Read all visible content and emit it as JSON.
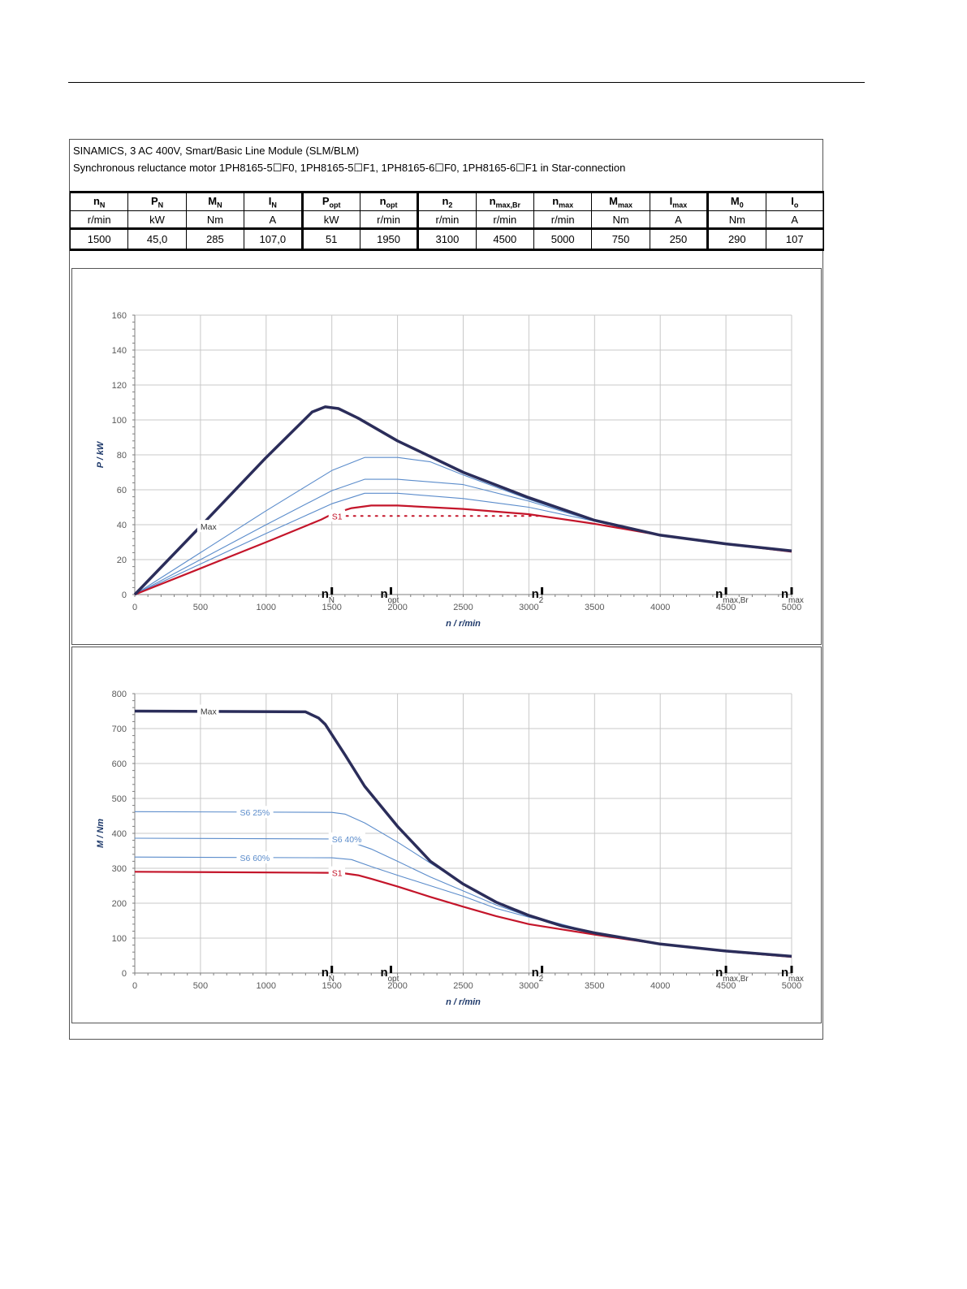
{
  "header": {
    "line1": "SINAMICS, 3 AC 400V, Smart/Basic Line Module (SLM/BLM)",
    "line2": "Synchronous reluctance motor  1PH8165-5☐F0,  1PH8165-5☐F1,  1PH8165-6☐F0,  1PH8165-6☐F1   in Star-connection"
  },
  "spec_table": {
    "columns": [
      {
        "sym": "n",
        "sub": "N",
        "unit": "r/min",
        "value": "1500"
      },
      {
        "sym": "P",
        "sub": "N",
        "unit": "kW",
        "value": "45,0"
      },
      {
        "sym": "M",
        "sub": "N",
        "unit": "Nm",
        "value": "285"
      },
      {
        "sym": "I",
        "sub": "N",
        "unit": "A",
        "value": "107,0"
      },
      {
        "sym": "P",
        "sub": "opt",
        "unit": "kW",
        "value": "51"
      },
      {
        "sym": "n",
        "sub": "opt",
        "unit": "r/min",
        "value": "1950"
      },
      {
        "sym": "n",
        "sub": "2",
        "unit": "r/min",
        "value": "3100"
      },
      {
        "sym": "n",
        "sub": "max,Br",
        "unit": "r/min",
        "value": "4500"
      },
      {
        "sym": "n",
        "sub": "max",
        "unit": "r/min",
        "value": "5000"
      },
      {
        "sym": "M",
        "sub": "max",
        "unit": "Nm",
        "value": "750"
      },
      {
        "sym": "I",
        "sub": "max",
        "unit": "A",
        "value": "250"
      },
      {
        "sym": "M",
        "sub": "0",
        "unit": "Nm",
        "value": "290"
      },
      {
        "sym": "I",
        "sub": "o",
        "unit": "A",
        "value": "107"
      }
    ]
  },
  "colors": {
    "max": "#2b2d5a",
    "s6": "#5b8ccb",
    "s1": "#c4152a",
    "grid": "#c8c8c8",
    "axis_text": "#595959",
    "axis_label": "#1f3a6b"
  },
  "chart_data": [
    {
      "type": "line",
      "xlabel": "n / r/min",
      "ylabel": "P / kW",
      "xlim": [
        0,
        5000
      ],
      "ylim": [
        0,
        160
      ],
      "xticks": [
        0,
        500,
        1000,
        1500,
        2000,
        2500,
        3000,
        3500,
        4000,
        4500,
        5000
      ],
      "yticks": [
        0,
        20,
        40,
        60,
        80,
        100,
        120,
        140,
        160
      ],
      "grid": true,
      "markers": [
        {
          "x": 1500,
          "label": "n",
          "sub": "N"
        },
        {
          "x": 1950,
          "label": "n",
          "sub": "opt"
        },
        {
          "x": 3100,
          "label": "n",
          "sub": "2"
        },
        {
          "x": 4500,
          "label": "n",
          "sub": "max,Br"
        },
        {
          "x": 5000,
          "label": "n",
          "sub": "max"
        }
      ],
      "rated_line": {
        "y": 45,
        "x_from": 1500,
        "x_to": 3100
      },
      "series": [
        {
          "name": "Max",
          "color_key": "max",
          "label_at": [
            500,
            39
          ],
          "x": [
            0,
            500,
            1000,
            1350,
            1450,
            1550,
            1700,
            2000,
            2500,
            3000,
            3500,
            4000,
            4500,
            5000
          ],
          "y": [
            0,
            39,
            78.5,
            104.5,
            107.5,
            106.5,
            101,
            88,
            70,
            55.5,
            42.5,
            34,
            29,
            25
          ]
        },
        {
          "name": "",
          "color_key": "s6",
          "x": [
            0,
            500,
            1000,
            1500,
            1750,
            2000,
            2250,
            2500,
            3000,
            3500,
            4000,
            4500,
            5000
          ],
          "y": [
            0,
            24,
            48,
            71,
            78.5,
            78.5,
            76,
            68.5,
            54.5,
            42,
            34,
            29,
            25
          ]
        },
        {
          "name": "",
          "color_key": "s6",
          "x": [
            0,
            500,
            1000,
            1500,
            1750,
            2000,
            2500,
            3000,
            3500,
            4000,
            4500,
            5000
          ],
          "y": [
            0,
            20,
            40,
            59.5,
            66,
            66,
            63,
            53.5,
            42,
            34,
            29,
            25
          ]
        },
        {
          "name": "",
          "color_key": "s6",
          "x": [
            0,
            500,
            1000,
            1500,
            1750,
            2000,
            2500,
            3000,
            3500,
            4000,
            4500,
            5000
          ],
          "y": [
            0,
            17.5,
            35,
            52,
            58,
            58,
            55,
            50,
            42,
            34,
            29,
            25
          ]
        },
        {
          "name": "S1",
          "color_key": "s1",
          "label_at": [
            1500,
            45
          ],
          "x": [
            0,
            500,
            1000,
            1420,
            1500,
            1650,
            1800,
            2000,
            2500,
            3000,
            3500,
            4000,
            4500,
            5000
          ],
          "y": [
            0,
            15,
            30,
            43,
            46,
            49.5,
            51,
            51,
            49,
            46,
            40.5,
            34,
            29,
            24.5
          ]
        }
      ]
    },
    {
      "type": "line",
      "xlabel": "n / r/min",
      "ylabel": "M / Nm",
      "xlim": [
        0,
        5000
      ],
      "ylim": [
        0,
        800
      ],
      "xticks": [
        0,
        500,
        1000,
        1500,
        2000,
        2500,
        3000,
        3500,
        4000,
        4500,
        5000
      ],
      "yticks": [
        0,
        100,
        200,
        300,
        400,
        500,
        600,
        700,
        800
      ],
      "grid": true,
      "markers": [
        {
          "x": 1500,
          "label": "n",
          "sub": "N"
        },
        {
          "x": 1950,
          "label": "n",
          "sub": "opt"
        },
        {
          "x": 3100,
          "label": "n",
          "sub": "2"
        },
        {
          "x": 4500,
          "label": "n",
          "sub": "max,Br"
        },
        {
          "x": 5000,
          "label": "n",
          "sub": "max"
        }
      ],
      "series": [
        {
          "name": "Max",
          "color_key": "max",
          "label_at": [
            500,
            750
          ],
          "x": [
            0,
            1300,
            1400,
            1450,
            1500,
            1600,
            1750,
            2000,
            2250,
            2500,
            2750,
            3000,
            3250,
            3500,
            4000,
            4500,
            5000
          ],
          "y": [
            750,
            748,
            730,
            712,
            683,
            625,
            535,
            420,
            320,
            255,
            203,
            165,
            135,
            115,
            83,
            63,
            48
          ]
        },
        {
          "name": "S6 25%",
          "color_key": "s6",
          "label_at": [
            800,
            460
          ],
          "x": [
            0,
            1500,
            1600,
            1750,
            2000,
            2250,
            2500,
            2750,
            3000,
            3500,
            4000,
            4500,
            5000
          ],
          "y": [
            462,
            460,
            455,
            430,
            375,
            315,
            255,
            205,
            165,
            115,
            83,
            63,
            48
          ]
        },
        {
          "name": "S6 40%",
          "color_key": "s6",
          "label_at": [
            1500,
            384
          ],
          "x": [
            0,
            1500,
            1650,
            1800,
            2000,
            2250,
            2500,
            2750,
            3000,
            3500,
            4000,
            4500,
            5000
          ],
          "y": [
            386,
            384,
            375,
            355,
            320,
            275,
            235,
            195,
            162,
            115,
            83,
            63,
            48
          ]
        },
        {
          "name": "S6 60%",
          "color_key": "s6",
          "label_at": [
            800,
            330
          ],
          "x": [
            0,
            1500,
            1650,
            1800,
            2000,
            2250,
            2500,
            2750,
            3000,
            3500,
            4000,
            4500,
            5000
          ],
          "y": [
            332,
            330,
            325,
            305,
            280,
            250,
            220,
            185,
            160,
            115,
            83,
            63,
            48
          ]
        },
        {
          "name": "S1",
          "color_key": "s1",
          "label_at": [
            1500,
            287
          ],
          "x": [
            0,
            1500,
            1600,
            1700,
            1800,
            2000,
            2250,
            2500,
            2750,
            3000,
            3500,
            4000,
            4500,
            5000
          ],
          "y": [
            290,
            287,
            285,
            280,
            270,
            248,
            218,
            190,
            163,
            140,
            110,
            83,
            62,
            46
          ]
        }
      ]
    }
  ]
}
